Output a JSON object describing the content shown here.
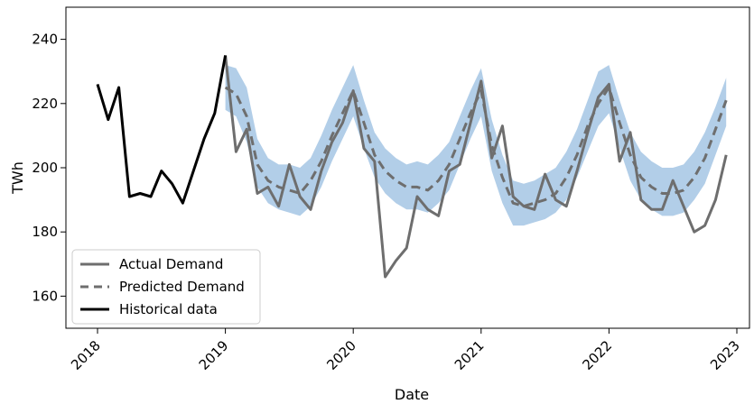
{
  "chart_data": {
    "type": "line",
    "xlabel": "Date",
    "ylabel": "TWh",
    "ylim": [
      150,
      250
    ],
    "xlim": [
      "2017-10-01",
      "2023-02-01"
    ],
    "x_ticks": [
      "2018",
      "2019",
      "2020",
      "2021",
      "2022",
      "2023"
    ],
    "y_ticks": [
      160,
      180,
      200,
      220,
      240
    ],
    "grid": false,
    "legend_position": "lower-left",
    "series": [
      {
        "name": "Actual Demand",
        "style": "solid",
        "color": "#6e6e6e",
        "x": [
          "2019-01",
          "2019-02",
          "2019-03",
          "2019-04",
          "2019-05",
          "2019-06",
          "2019-07",
          "2019-08",
          "2019-09",
          "2019-10",
          "2019-11",
          "2019-12",
          "2020-01",
          "2020-02",
          "2020-03",
          "2020-04",
          "2020-05",
          "2020-06",
          "2020-07",
          "2020-08",
          "2020-09",
          "2020-10",
          "2020-11",
          "2020-12",
          "2021-01",
          "2021-02",
          "2021-03",
          "2021-04",
          "2021-05",
          "2021-06",
          "2021-07",
          "2021-08",
          "2021-09",
          "2021-10",
          "2021-11",
          "2021-12",
          "2022-01",
          "2022-02",
          "2022-03",
          "2022-04",
          "2022-05",
          "2022-06",
          "2022-07",
          "2022-08",
          "2022-09",
          "2022-10",
          "2022-11",
          "2022-12"
        ],
        "values": [
          235,
          205,
          212,
          192,
          194,
          188,
          201,
          191,
          187,
          199,
          208,
          214,
          224,
          206,
          202,
          166,
          171,
          175,
          191,
          187,
          185,
          199,
          201,
          214,
          227,
          203,
          213,
          191,
          188,
          187,
          198,
          190,
          188,
          199,
          211,
          222,
          226,
          202,
          211,
          190,
          187,
          187,
          196,
          188,
          180,
          182,
          190,
          204
        ]
      },
      {
        "name": "Predicted Demand",
        "style": "dashed",
        "color": "#6e6e6e",
        "x": [
          "2019-01",
          "2019-02",
          "2019-03",
          "2019-04",
          "2019-05",
          "2019-06",
          "2019-07",
          "2019-08",
          "2019-09",
          "2019-10",
          "2019-11",
          "2019-12",
          "2020-01",
          "2020-02",
          "2020-03",
          "2020-04",
          "2020-05",
          "2020-06",
          "2020-07",
          "2020-08",
          "2020-09",
          "2020-10",
          "2020-11",
          "2020-12",
          "2021-01",
          "2021-02",
          "2021-03",
          "2021-04",
          "2021-05",
          "2021-06",
          "2021-07",
          "2021-08",
          "2021-09",
          "2021-10",
          "2021-11",
          "2021-12",
          "2022-01",
          "2022-02",
          "2022-03",
          "2022-04",
          "2022-05",
          "2022-06",
          "2022-07",
          "2022-08",
          "2022-09",
          "2022-10",
          "2022-11",
          "2022-12"
        ],
        "values": [
          225,
          223,
          216,
          201,
          196,
          194,
          193,
          192,
          196,
          202,
          210,
          217,
          224,
          214,
          204,
          199,
          196,
          194,
          194,
          193,
          196,
          201,
          209,
          217,
          224,
          207,
          197,
          189,
          188,
          189,
          190,
          192,
          197,
          204,
          213,
          220,
          225,
          214,
          204,
          197,
          194,
          192,
          192,
          193,
          197,
          203,
          212,
          221
        ]
      },
      {
        "name": "Historical data",
        "style": "solid",
        "color": "#000000",
        "x": [
          "2018-01",
          "2018-02",
          "2018-03",
          "2018-04",
          "2018-05",
          "2018-06",
          "2018-07",
          "2018-08",
          "2018-09",
          "2018-10",
          "2018-11",
          "2018-12",
          "2019-01"
        ],
        "values": [
          226,
          215,
          225,
          191,
          192,
          191,
          199,
          195,
          189,
          199,
          209,
          217,
          235
        ]
      }
    ],
    "confidence_band": {
      "color": "#aac9e6",
      "x": [
        "2019-01",
        "2019-02",
        "2019-03",
        "2019-04",
        "2019-05",
        "2019-06",
        "2019-07",
        "2019-08",
        "2019-09",
        "2019-10",
        "2019-11",
        "2019-12",
        "2020-01",
        "2020-02",
        "2020-03",
        "2020-04",
        "2020-05",
        "2020-06",
        "2020-07",
        "2020-08",
        "2020-09",
        "2020-10",
        "2020-11",
        "2020-12",
        "2021-01",
        "2021-02",
        "2021-03",
        "2021-04",
        "2021-05",
        "2021-06",
        "2021-07",
        "2021-08",
        "2021-09",
        "2021-10",
        "2021-11",
        "2021-12",
        "2022-01",
        "2022-02",
        "2022-03",
        "2022-04",
        "2022-05",
        "2022-06",
        "2022-07",
        "2022-08",
        "2022-09",
        "2022-10",
        "2022-11",
        "2022-12"
      ],
      "upper": [
        232,
        231,
        225,
        209,
        203,
        201,
        201,
        200,
        203,
        210,
        218,
        225,
        232,
        221,
        211,
        206,
        203,
        201,
        202,
        201,
        204,
        208,
        216,
        224,
        231,
        215,
        204,
        196,
        195,
        196,
        198,
        200,
        205,
        212,
        221,
        230,
        232,
        221,
        211,
        205,
        202,
        200,
        200,
        201,
        205,
        211,
        219,
        228
      ],
      "lower": [
        218,
        216,
        208,
        194,
        189,
        187,
        186,
        185,
        188,
        194,
        202,
        209,
        216,
        206,
        197,
        192,
        189,
        187,
        187,
        186,
        189,
        193,
        201,
        209,
        216,
        199,
        189,
        182,
        182,
        183,
        184,
        186,
        190,
        197,
        205,
        213,
        217,
        206,
        196,
        190,
        187,
        185,
        185,
        186,
        190,
        195,
        204,
        213
      ]
    }
  }
}
